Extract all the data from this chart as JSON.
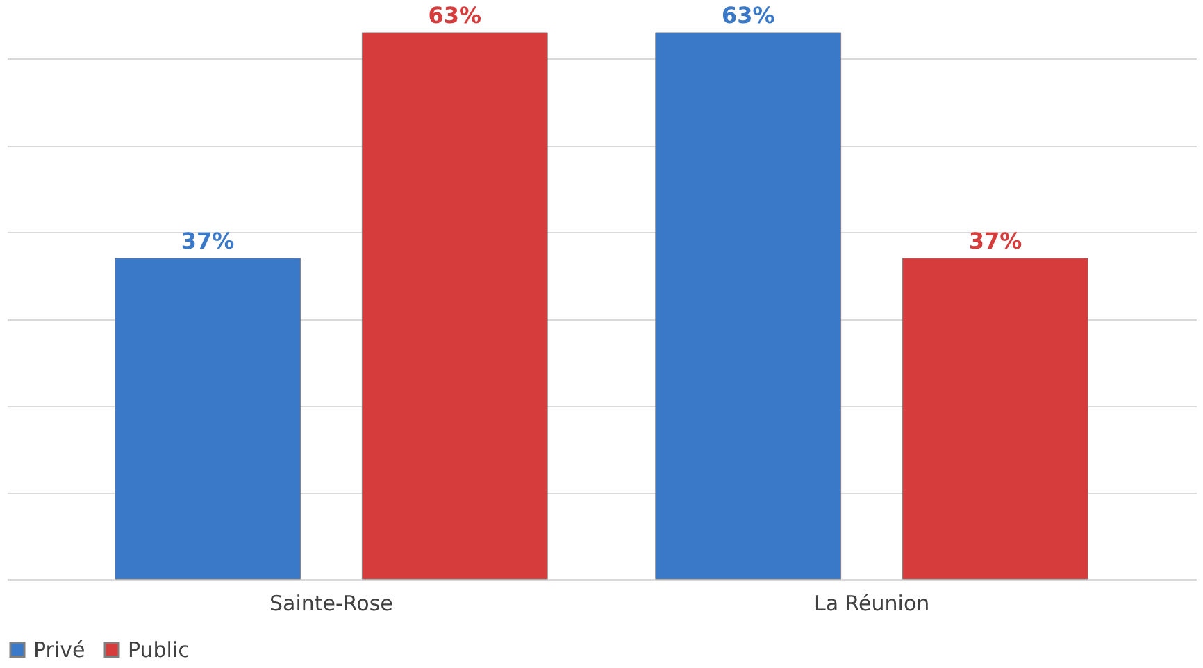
{
  "chart_data": {
    "type": "bar",
    "categories": [
      "Sainte-Rose",
      "La Réunion"
    ],
    "series": [
      {
        "name": "Privé",
        "color": "#3a78c8",
        "values": [
          37,
          63
        ],
        "value_labels": [
          "37%",
          "63%"
        ]
      },
      {
        "name": "Public",
        "color": "#d63c3c",
        "values": [
          63,
          37
        ],
        "value_labels": [
          "63%",
          "37%"
        ]
      }
    ],
    "grid": "y",
    "legend": "bottom",
    "tick_labels": "x"
  }
}
